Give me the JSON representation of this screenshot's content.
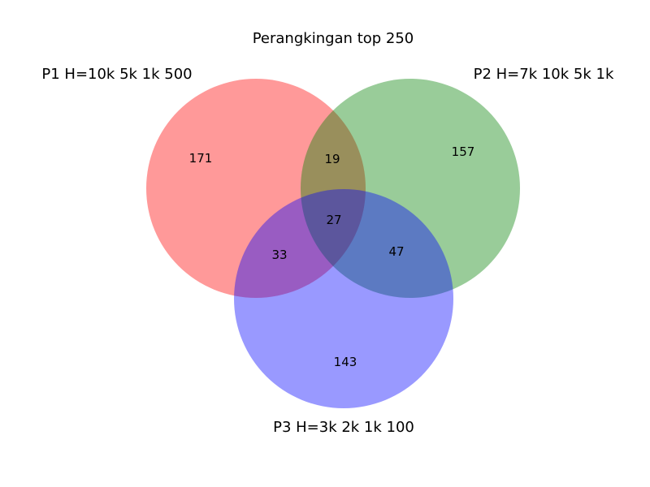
{
  "chart_data": {
    "type": "venn",
    "title": "Perangkingan top 250",
    "sets": [
      {
        "name": "P1 H=10k 5k 1k 500",
        "color": "#ff0000"
      },
      {
        "name": "P2 H=7k 10k 5k 1k",
        "color": "#008000"
      },
      {
        "name": "P3 H=3k 2k 1k 100",
        "color": "#0000ff"
      }
    ],
    "regions": {
      "p1_only": "171",
      "p2_only": "157",
      "p3_only": "143",
      "p1_p2": "19",
      "p1_p3": "33",
      "p2_p3": "47",
      "p1_p2_p3": "27"
    },
    "fill_opacity": 0.4
  }
}
